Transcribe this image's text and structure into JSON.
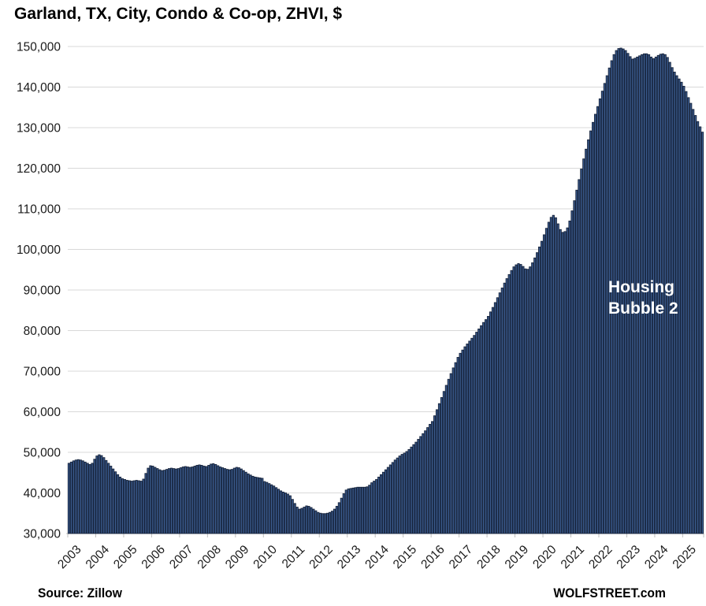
{
  "title": "Garland, TX, City, Condo & Co-op, ZHVI, $",
  "annotation": {
    "line1": "Housing",
    "line2": "Bubble 2"
  },
  "footer": {
    "source": "Source: Zillow",
    "site": "WOLFSTREET.com"
  },
  "colors": {
    "bar_fill": "#3a5a8c",
    "bar_edge": "#16233b",
    "grid": "#d9d9d9",
    "axis": "#bfbfbf",
    "tick_text": "#1a1a1a",
    "annotation_text": "#ffffff",
    "background": "#ffffff"
  },
  "chart_data": {
    "type": "bar",
    "title": "Garland, TX, City, Condo & Co-op, ZHVI, $",
    "x_frequency": "monthly",
    "x_start": "2003-01",
    "x_end": "2025-09",
    "x_tick_labels": [
      "2003",
      "2004",
      "2005",
      "2006",
      "2007",
      "2008",
      "2009",
      "2010",
      "2011",
      "2012",
      "2013",
      "2014",
      "2015",
      "2016",
      "2017",
      "2018",
      "2019",
      "2020",
      "2021",
      "2022",
      "2023",
      "2024",
      "2025"
    ],
    "ylabel": "",
    "ylim": [
      30000,
      150000
    ],
    "y_ticks": [
      30000,
      40000,
      50000,
      60000,
      70000,
      80000,
      90000,
      100000,
      110000,
      120000,
      130000,
      140000,
      150000
    ],
    "grid": "horizontal",
    "legend": "none",
    "values": [
      47300,
      47600,
      47900,
      48100,
      48200,
      48100,
      47900,
      47600,
      47300,
      47000,
      47300,
      48300,
      49100,
      49400,
      49200,
      48700,
      48000,
      47300,
      46600,
      45900,
      45200,
      44500,
      43900,
      43500,
      43300,
      43100,
      43000,
      42900,
      43000,
      43100,
      43000,
      42900,
      43400,
      44800,
      46100,
      46700,
      46600,
      46300,
      46000,
      45700,
      45500,
      45600,
      45800,
      46000,
      46100,
      46000,
      45900,
      46000,
      46200,
      46400,
      46500,
      46400,
      46300,
      46400,
      46600,
      46800,
      46900,
      46800,
      46600,
      46500,
      46800,
      47100,
      47200,
      47000,
      46700,
      46400,
      46200,
      46000,
      45800,
      45700,
      45800,
      46100,
      46300,
      46200,
      45900,
      45500,
      45100,
      44700,
      44400,
      44100,
      43900,
      43800,
      43700,
      43600,
      42800,
      42600,
      42300,
      42000,
      41700,
      41300,
      40900,
      40500,
      40200,
      40000,
      39700,
      39300,
      38400,
      37400,
      36500,
      36000,
      36200,
      36500,
      36800,
      36700,
      36400,
      36000,
      35600,
      35200,
      35000,
      34900,
      34900,
      35000,
      35200,
      35500,
      36000,
      36700,
      37600,
      38700,
      39800,
      40700,
      41000,
      41100,
      41200,
      41300,
      41400,
      41400,
      41400,
      41400,
      41500,
      41900,
      42500,
      42900,
      43300,
      43900,
      44500,
      45100,
      45700,
      46300,
      46900,
      47500,
      48100,
      48600,
      49100,
      49500,
      49800,
      50200,
      50700,
      51300,
      51900,
      52500,
      53200,
      53900,
      54600,
      55300,
      56100,
      56900,
      57600,
      59000,
      60500,
      62000,
      63500,
      65000,
      66500,
      68000,
      69400,
      70800,
      72100,
      73400,
      74400,
      75200,
      76000,
      76700,
      77400,
      78100,
      78800,
      79600,
      80400,
      81200,
      82000,
      82700,
      83500,
      84600,
      85700,
      86900,
      88100,
      89300,
      90500,
      91700,
      92800,
      93800,
      94800,
      95700,
      96200,
      96500,
      96300,
      95800,
      95200,
      95100,
      95700,
      96700,
      97900,
      99200,
      100600,
      102000,
      103600,
      105200,
      106700,
      107900,
      108400,
      107800,
      106300,
      104900,
      104200,
      104400,
      105300,
      107000,
      109500,
      112000,
      114600,
      117200,
      119800,
      122300,
      124700,
      127000,
      129200,
      131300,
      133300,
      135200,
      137100,
      139000,
      140900,
      142800,
      144700,
      146500,
      148000,
      149000,
      149500,
      149600,
      149400,
      149000,
      148300,
      147500,
      146900,
      147100,
      147400,
      147700,
      148000,
      148200,
      148200,
      148000,
      147400,
      147000,
      147400,
      147800,
      148100,
      148200,
      148000,
      147300,
      146100,
      144800,
      143700,
      142800,
      142000,
      141200,
      140200,
      138900,
      137400,
      136000,
      134500,
      133000,
      131500,
      130200,
      128900
    ]
  }
}
